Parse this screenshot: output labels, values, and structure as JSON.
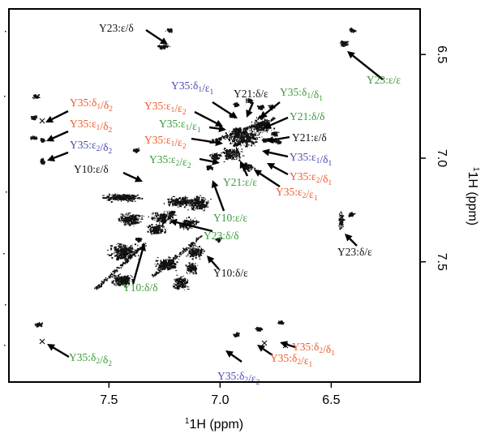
{
  "chart_data": {
    "type": "scatter",
    "title": "",
    "xlabel": "1H (ppm)",
    "ylabel": "1H (ppm)",
    "xlim": [
      7.95,
      6.1
    ],
    "ylim": [
      6.28,
      8.08
    ],
    "x_ticks": [
      "7.5",
      "7.0",
      "6.5"
    ],
    "y_ticks": [
      "6.5",
      "7.0",
      "7.5"
    ],
    "x_tick_values": [
      7.5,
      7.0,
      6.5
    ],
    "y_tick_values": [
      6.5,
      7.0,
      7.5
    ],
    "grid": false,
    "colors": {
      "black": "#111111",
      "green": "#3a9a3a",
      "orange": "#ee5a2a",
      "blue": "#4a4ab0"
    },
    "cross_peaks": [
      {
        "label": "Y23:ε/δ",
        "x": 7.23,
        "y": 6.38
      },
      {
        "label": "Y23:ε/ε",
        "x": 6.41,
        "y": 6.38
      },
      {
        "label": "Y35:δ1/δ2",
        "x": 7.83,
        "y": 6.7
      },
      {
        "label": "Y35:ε1/δ2",
        "x": 7.84,
        "y": 6.8
      },
      {
        "label": "Y35:ε2/δ2",
        "x": 7.84,
        "y": 6.9
      },
      {
        "label": "Y10:ε/δ",
        "x": 7.38,
        "y": 6.96
      },
      {
        "label": "Y35:δ1/ε1",
        "x": 6.87,
        "y": 6.72
      },
      {
        "label": "Y21:δ/ε",
        "x": 6.82,
        "y": 6.75
      },
      {
        "label": "Y35:δ1/δ1",
        "x": 6.77,
        "y": 6.75
      },
      {
        "label": "Y35:ε1/ε2",
        "x": 6.93,
        "y": 6.74
      },
      {
        "label": "Y35:ε1/ε1",
        "x": 6.95,
        "y": 6.79
      },
      {
        "label": "Y21:δ/δ",
        "x": 6.82,
        "y": 6.8
      },
      {
        "label": "Y21:ε/δ",
        "x": 6.8,
        "y": 6.83
      },
      {
        "label": "Y35:ε1/ε2",
        "x": 6.92,
        "y": 6.86
      },
      {
        "label": "Y35:ε1/δ1",
        "x": 6.76,
        "y": 6.88
      },
      {
        "label": "Y35:ε2/ε2",
        "x": 6.93,
        "y": 6.93
      },
      {
        "label": "Y21:ε/ε",
        "x": 6.8,
        "y": 6.91
      },
      {
        "label": "Y35:ε2/δ1",
        "x": 6.76,
        "y": 6.91
      },
      {
        "label": "Y35:ε2/ε1",
        "x": 6.74,
        "y": 6.92
      },
      {
        "label": "Y10:ε/ε",
        "x": 7.05,
        "y": 7.04
      },
      {
        "label": "Y23:δ/δ",
        "x": 7.22,
        "y": 7.26
      },
      {
        "label": "Y23:δ/ε",
        "x": 6.41,
        "y": 7.27
      },
      {
        "label": "Y10:δ/δ",
        "x": 7.37,
        "y": 7.39
      },
      {
        "label": "Y10:δ/ε",
        "x": 7.01,
        "y": 7.39
      },
      {
        "label": "Y35:δ2/δ2",
        "x": 7.82,
        "y": 7.8
      },
      {
        "label": "Y35:δ2/ε2",
        "x": 6.93,
        "y": 7.85
      },
      {
        "label": "Y35:δ2/ε1",
        "x": 6.83,
        "y": 7.82
      },
      {
        "label": "Y35:δ2/δ1",
        "x": 6.73,
        "y": 7.79
      }
    ],
    "annotations": [
      {
        "key": "y23_ed",
        "color": "black",
        "parts": [
          [
            "Y23:ε/δ",
            null
          ]
        ]
      },
      {
        "key": "y23_ee",
        "color": "green",
        "parts": [
          [
            "Y23:ε/ε",
            null
          ]
        ]
      },
      {
        "key": "y35_d1d2",
        "color": "orange",
        "parts": [
          [
            "Y35:δ",
            "1"
          ],
          [
            "/δ",
            "2"
          ]
        ]
      },
      {
        "key": "y35_e1d2",
        "color": "orange",
        "parts": [
          [
            "Y35:ε",
            "1"
          ],
          [
            "/δ",
            "2"
          ]
        ]
      },
      {
        "key": "y35_e2d2",
        "color": "blue",
        "parts": [
          [
            "Y35:ε",
            "2"
          ],
          [
            "/δ",
            "2"
          ]
        ]
      },
      {
        "key": "y10_ed",
        "color": "black",
        "parts": [
          [
            "Y10:ε/δ",
            null
          ]
        ]
      },
      {
        "key": "y35_d1e1",
        "color": "blue",
        "parts": [
          [
            "Y35:δ",
            "1"
          ],
          [
            "/ε",
            "1"
          ]
        ]
      },
      {
        "key": "y21_de",
        "color": "black",
        "parts": [
          [
            "Y21:δ/ε",
            null
          ]
        ]
      },
      {
        "key": "y35_d1d1",
        "color": "green",
        "parts": [
          [
            "Y35:δ",
            "1"
          ],
          [
            "/δ",
            "1"
          ]
        ]
      },
      {
        "key": "y35_e1e2_a",
        "color": "orange",
        "parts": [
          [
            "Y35:ε",
            "1"
          ],
          [
            "/ε",
            "2"
          ]
        ]
      },
      {
        "key": "y35_e1e1",
        "color": "green",
        "parts": [
          [
            "Y35:ε",
            "1"
          ],
          [
            "/ε",
            "1"
          ]
        ]
      },
      {
        "key": "y21_dd",
        "color": "green",
        "parts": [
          [
            "Y21:δ/δ",
            null
          ]
        ]
      },
      {
        "key": "y21_ed",
        "color": "black",
        "parts": [
          [
            "Y21:ε/δ",
            null
          ]
        ]
      },
      {
        "key": "y35_e1e2_b",
        "color": "orange",
        "parts": [
          [
            "Y35:ε",
            "1"
          ],
          [
            "/ε",
            "2"
          ]
        ]
      },
      {
        "key": "y35_e1d1",
        "color": "blue",
        "parts": [
          [
            "Y35:ε",
            "1"
          ],
          [
            "/δ",
            "1"
          ]
        ]
      },
      {
        "key": "y35_e2e2",
        "color": "green",
        "parts": [
          [
            "Y35:ε",
            "2"
          ],
          [
            "/ε",
            "2"
          ]
        ]
      },
      {
        "key": "y21_ee",
        "color": "green",
        "parts": [
          [
            "Y21:ε/ε",
            null
          ]
        ]
      },
      {
        "key": "y35_e2d1",
        "color": "orange",
        "parts": [
          [
            "Y35:ε",
            "2"
          ],
          [
            "/δ",
            "1"
          ]
        ]
      },
      {
        "key": "y35_e2e1",
        "color": "orange",
        "parts": [
          [
            "Y35:ε",
            "2"
          ],
          [
            "/ε",
            "1"
          ]
        ]
      },
      {
        "key": "y10_ee",
        "color": "green",
        "parts": [
          [
            "Y10:ε/ε",
            null
          ]
        ]
      },
      {
        "key": "y23_dd",
        "color": "green",
        "parts": [
          [
            "Y23:δ/δ",
            null
          ]
        ]
      },
      {
        "key": "y23_de",
        "color": "black",
        "parts": [
          [
            "Y23:δ/ε",
            null
          ]
        ]
      },
      {
        "key": "y10_dd",
        "color": "green",
        "parts": [
          [
            "Y10:δ/δ",
            null
          ]
        ]
      },
      {
        "key": "y10_de",
        "color": "black",
        "parts": [
          [
            "Y10:δ/ε",
            null
          ]
        ]
      },
      {
        "key": "y35_d2d2",
        "color": "green",
        "parts": [
          [
            "Y35:δ",
            "2"
          ],
          [
            "/δ",
            "2"
          ]
        ]
      },
      {
        "key": "y35_d2e2",
        "color": "blue",
        "parts": [
          [
            "Y35:δ",
            "2"
          ],
          [
            "/ε",
            "2"
          ]
        ]
      },
      {
        "key": "y35_d2e1",
        "color": "orange",
        "parts": [
          [
            "Y35:δ",
            "2"
          ],
          [
            "/ε",
            "1"
          ]
        ]
      },
      {
        "key": "y35_d2d1",
        "color": "orange",
        "parts": [
          [
            "Y35:δ",
            "2"
          ],
          [
            "/δ",
            "1"
          ]
        ]
      }
    ]
  }
}
